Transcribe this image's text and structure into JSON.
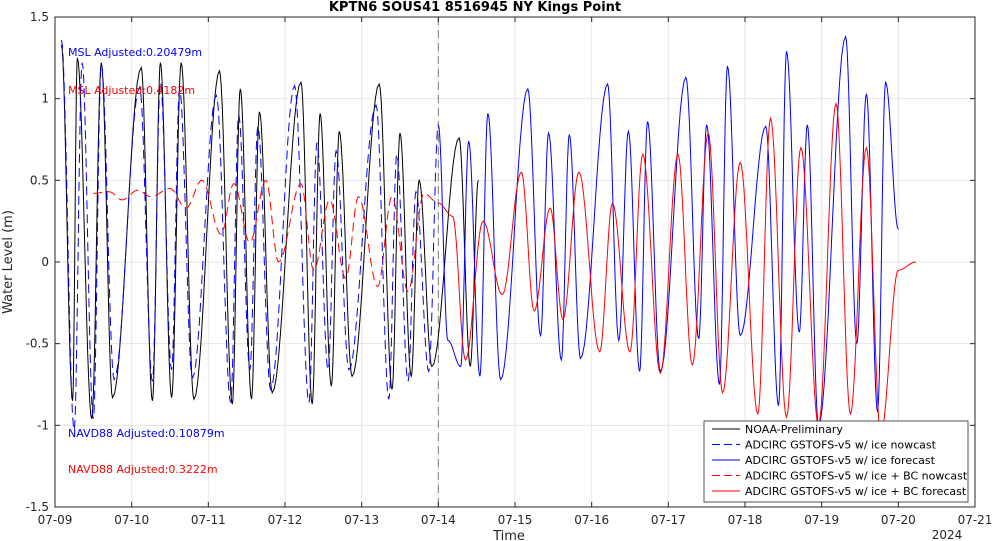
{
  "chart_data": {
    "type": "line",
    "title": "KPTN6 SOUS41 8516945 NY Kings Point",
    "xlabel": "Time",
    "ylabel": "Water Level (m)",
    "x_tick_labels": [
      "07-09",
      "07-10",
      "07-11",
      "07-12",
      "07-13",
      "07-14",
      "07-15",
      "07-16",
      "07-17",
      "07-18",
      "07-19",
      "07-20",
      "07-21"
    ],
    "x_year_label": "2024",
    "xlim": [
      "2024-07-09 00:00",
      "2024-07-21 00:00"
    ],
    "ylim": [
      -1.5,
      1.5
    ],
    "y_ticks": [
      -1.5,
      -1,
      -0.5,
      0,
      0.5,
      1,
      1.5
    ],
    "y_tick_labels": [
      "-1.5",
      "-1",
      "-0.5",
      "0",
      "0.5",
      "1",
      "1.5"
    ],
    "grid": true,
    "legend_position": "bottom-right",
    "nowcast_forecast_divider": "2024-07-14 00:00",
    "annotations": [
      {
        "text": "MSL Adjusted:0.20479m",
        "color": "#0000ff"
      },
      {
        "text": "MSL Adjusted:0.4182m",
        "color": "#ff0000"
      },
      {
        "text": "NAVD88 Adjusted:0.10879m",
        "color": "#0000ff"
      },
      {
        "text": "NAVD88 Adjusted:0.3222m",
        "color": "#ff0000"
      }
    ],
    "series": [
      {
        "name": "NOAA-Preliminary",
        "color": "#000000",
        "dash": "solid",
        "x": [
          "07-09 02:00",
          "07-09 05:30",
          "07-09 07:00",
          "07-09 11:30",
          "07-09 14:30",
          "07-09 18:00",
          "07-10 03:00",
          "07-10 06:30",
          "07-10 09:00",
          "07-10 12:30",
          "07-10 15:30",
          "07-10 19:30",
          "07-11 03:30",
          "07-11 07:30",
          "07-11 10:00",
          "07-11 13:30",
          "07-11 16:00",
          "07-11 20:00",
          "07-12 05:00",
          "07-12 08:30",
          "07-12 11:00",
          "07-12 14:30",
          "07-12 17:00",
          "07-12 21:00",
          "07-13 05:30",
          "07-13 09:30",
          "07-13 12:00",
          "07-13 15:30",
          "07-13 18:00",
          "07-13 22:00",
          "07-14 06:30",
          "07-14 10:00",
          "07-14 12:30"
        ],
        "y": [
          1.33,
          -0.85,
          1.25,
          -0.96,
          1.22,
          -0.83,
          1.19,
          -0.85,
          1.22,
          -0.83,
          1.22,
          -0.84,
          1.17,
          -0.87,
          1.06,
          -0.84,
          0.92,
          -0.8,
          1.1,
          -0.87,
          0.91,
          -0.76,
          0.8,
          -0.7,
          1.09,
          -0.78,
          0.79,
          -0.7,
          0.5,
          -0.64,
          0.76,
          -0.64,
          0.5
        ]
      },
      {
        "name": "ADCIRC GSTOFS-v5 w/ ice nowcast",
        "color": "#0000ff",
        "dash": "dashed",
        "x": [
          "07-09 02:00",
          "07-09 06:00",
          "07-09 08:30",
          "07-09 12:00",
          "07-09 14:30",
          "07-09 18:30",
          "07-10 02:30",
          "07-10 06:30",
          "07-10 09:00",
          "07-10 12:30",
          "07-10 15:00",
          "07-10 19:00",
          "07-11 02:30",
          "07-11 07:00",
          "07-11 09:30",
          "07-11 13:00",
          "07-11 15:30",
          "07-11 19:30",
          "07-12 03:00",
          "07-12 07:30",
          "07-12 10:00",
          "07-12 13:30",
          "07-12 16:00",
          "07-12 20:00",
          "07-13 04:30",
          "07-13 08:30",
          "07-13 11:00",
          "07-13 14:30",
          "07-13 17:00",
          "07-13 21:00",
          "07-14 00:00"
        ],
        "y": [
          1.36,
          -1.03,
          1.22,
          -0.96,
          1.21,
          -0.72,
          1.07,
          -0.73,
          1.1,
          -0.66,
          1.06,
          -0.71,
          1.02,
          -0.86,
          0.9,
          -0.66,
          0.83,
          -0.78,
          1.08,
          -0.86,
          0.73,
          -0.66,
          0.68,
          -0.66,
          0.96,
          -0.84,
          0.66,
          -0.73,
          0.43,
          -0.67,
          0.84
        ]
      },
      {
        "name": "ADCIRC GSTOFS-v5 w/ ice forecast",
        "color": "#0000ff",
        "dash": "solid",
        "x": [
          "07-14 00:00",
          "07-14 03:00",
          "07-14 07:00",
          "07-14 09:30",
          "07-14 13:00",
          "07-14 15:30",
          "07-14 19:30",
          "07-15 04:00",
          "07-15 08:00",
          "07-15 10:30",
          "07-15 14:30",
          "07-15 17:00",
          "07-15 20:30",
          "07-16 05:00",
          "07-16 08:30",
          "07-16 11:30",
          "07-16 15:00",
          "07-16 17:30",
          "07-16 21:30",
          "07-17 05:30",
          "07-17 09:30",
          "07-17 12:00",
          "07-17 16:00",
          "07-17 18:30",
          "07-17 22:30",
          "07-18 06:30",
          "07-18 10:30",
          "07-18 13:00",
          "07-18 17:00",
          "07-18 19:30",
          "07-18 23:00",
          "07-19 07:30",
          "07-19 11:00",
          "07-19 14:00",
          "07-19 17:30",
          "07-19 20:00",
          "07-20 00:00",
          "07-20 08:00",
          "07-20 12:00",
          "07-20 14:30",
          "07-20 18:30",
          "07-20 21:00",
          "07-21 00:00"
        ],
        "y": [
          0.84,
          -0.48,
          -0.64,
          0.74,
          -0.7,
          0.91,
          -0.72,
          1.06,
          -0.45,
          0.79,
          -0.6,
          0.78,
          -0.59,
          1.09,
          -0.48,
          0.8,
          -0.67,
          0.86,
          -0.67,
          1.13,
          -0.47,
          0.84,
          -0.75,
          1.2,
          -0.45,
          0.83,
          -0.88,
          1.29,
          -0.43,
          0.84,
          -1.0,
          1.38,
          -0.5,
          1.03,
          -0.92,
          1.1,
          0.2,
          0,
          0,
          0,
          0,
          0,
          0
        ]
      },
      {
        "name": "ADCIRC GSTOFS-v5 w/ ice + BC nowcast",
        "color": "#ff0000",
        "dash": "dashed",
        "x": [
          "07-09 12:00",
          "07-09 17:00",
          "07-09 21:00",
          "07-10 02:00",
          "07-10 06:00",
          "07-10 12:00",
          "07-10 17:00",
          "07-10 22:00",
          "07-11 04:00",
          "07-11 08:00",
          "07-11 13:00",
          "07-11 18:00",
          "07-11 22:00",
          "07-12 05:00",
          "07-12 09:00",
          "07-12 14:00",
          "07-12 19:00",
          "07-12 23:00",
          "07-13 05:00",
          "07-13 09:30",
          "07-13 14:30",
          "07-13 19:30",
          "07-14 00:00"
        ],
        "y": [
          0.42,
          0.43,
          0.38,
          0.44,
          0.4,
          0.45,
          0.33,
          0.5,
          0.17,
          0.48,
          0.12,
          0.5,
          0.0,
          0.48,
          -0.05,
          0.38,
          -0.1,
          0.4,
          -0.15,
          0.4,
          -0.18,
          0.42,
          0.36
        ]
      },
      {
        "name": "ADCIRC GSTOFS-v5 w/ ice + BC forecast",
        "color": "#ff0000",
        "dash": "solid",
        "x": [
          "07-14 00:00",
          "07-14 04:30",
          "07-14 08:30",
          "07-14 14:00",
          "07-14 20:00",
          "07-15 02:00",
          "07-15 06:00",
          "07-15 11:00",
          "07-15 15:00",
          "07-15 20:00",
          "07-16 02:30",
          "07-16 06:30",
          "07-16 12:00",
          "07-16 16:00",
          "07-16 21:30",
          "07-17 03:00",
          "07-17 07:30",
          "07-17 12:30",
          "07-17 17:00",
          "07-17 22:30",
          "07-18 04:00",
          "07-18 08:00",
          "07-18 13:00",
          "07-18 17:30",
          "07-18 23:00",
          "07-19 04:30",
          "07-19 09:00",
          "07-19 14:00",
          "07-19 18:30",
          "07-20 00:00",
          "07-20 05:30",
          "07-20 09:30",
          "07-20 14:00",
          "07-20 19:30",
          "07-21 00:00"
        ],
        "y": [
          0.36,
          0.28,
          -0.6,
          0.25,
          -0.2,
          0.55,
          -0.3,
          0.33,
          -0.35,
          0.55,
          -0.55,
          0.36,
          -0.55,
          0.66,
          -0.68,
          0.66,
          -0.63,
          0.79,
          -0.8,
          0.61,
          -0.93,
          0.88,
          -0.95,
          0.7,
          -1.0,
          0.97,
          -0.93,
          0.7,
          -1.05,
          -0.05,
          0,
          0,
          0,
          0,
          0
        ]
      }
    ]
  }
}
